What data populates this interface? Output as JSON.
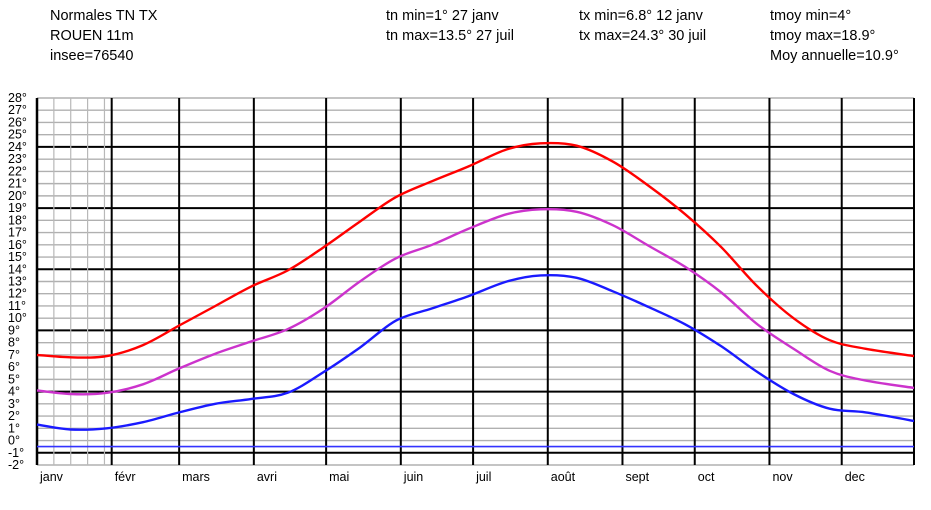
{
  "header": {
    "title": "Normales TN TX",
    "station": "ROUEN 11m",
    "insee": "insee=76540",
    "tn_min": "tn min=1° 27 janv",
    "tn_max": "tn max=13.5° 27 juil",
    "tx_min": "tx min=6.8° 12 janv",
    "tx_max": "tx max=24.3° 30 juil",
    "tmoy_min": "tmoy min=4°",
    "tmoy_max": "tmoy max=18.9°",
    "moy_annuelle": "Moy annuelle=10.9°"
  },
  "chart_data": {
    "type": "line",
    "ylim": [
      -2,
      28
    ],
    "y_ticks": [
      "28°",
      "27°",
      "26°",
      "25°",
      "24°",
      "23°",
      "22°",
      "21°",
      "20°",
      "19°",
      "18°",
      "17°",
      "16°",
      "15°",
      "14°",
      "13°",
      "12°",
      "11°",
      "10°",
      "9°",
      "8°",
      "7°",
      "6°",
      "5°",
      "4°",
      "3°",
      "2°",
      "1°",
      "0°",
      "-1°",
      "-2°"
    ],
    "categories": [
      "janv",
      "févr",
      "mars",
      "avri",
      "mai",
      "juin",
      "juil",
      "août",
      "sept",
      "oct",
      "nov",
      "dec"
    ],
    "x_day_range": [
      1,
      365
    ],
    "series": [
      {
        "color": "#ff0000",
        "x": [
          1,
          15,
          30,
          45,
          60,
          75,
          90,
          105,
          120,
          135,
          150,
          165,
          180,
          196,
          210,
          225,
          240,
          255,
          270,
          285,
          300,
          315,
          330,
          345,
          365
        ],
        "values": [
          7.0,
          6.8,
          6.9,
          7.8,
          9.4,
          11.0,
          12.6,
          13.9,
          15.8,
          17.9,
          19.9,
          21.2,
          22.4,
          23.8,
          24.3,
          24.1,
          22.8,
          20.8,
          18.5,
          15.8,
          12.6,
          10.0,
          8.2,
          7.5,
          6.9
        ]
      },
      {
        "color": "#cc33cc",
        "x": [
          1,
          15,
          30,
          45,
          60,
          75,
          90,
          105,
          120,
          135,
          150,
          165,
          180,
          196,
          210,
          225,
          240,
          255,
          270,
          285,
          300,
          315,
          330,
          345,
          365
        ],
        "values": [
          4.1,
          3.8,
          3.9,
          4.6,
          5.9,
          7.1,
          8.1,
          9.1,
          10.8,
          13.0,
          14.9,
          16.0,
          17.3,
          18.5,
          18.9,
          18.7,
          17.6,
          15.9,
          14.2,
          12.1,
          9.5,
          7.5,
          5.7,
          4.9,
          4.3
        ]
      },
      {
        "color": "#1a1aff",
        "x": [
          1,
          15,
          30,
          45,
          60,
          75,
          90,
          105,
          120,
          135,
          150,
          165,
          180,
          196,
          210,
          225,
          240,
          255,
          270,
          285,
          300,
          315,
          330,
          345,
          365
        ],
        "values": [
          1.3,
          0.9,
          1.0,
          1.5,
          2.3,
          3.0,
          3.4,
          3.9,
          5.6,
          7.6,
          9.8,
          10.8,
          11.8,
          13.0,
          13.5,
          13.3,
          12.2,
          10.9,
          9.5,
          7.7,
          5.6,
          3.8,
          2.6,
          2.3,
          1.6
        ]
      },
      {
        "color": "#3333ff",
        "x": [
          1,
          365
        ],
        "values": [
          -0.5,
          -0.5
        ]
      }
    ],
    "grid": true
  }
}
